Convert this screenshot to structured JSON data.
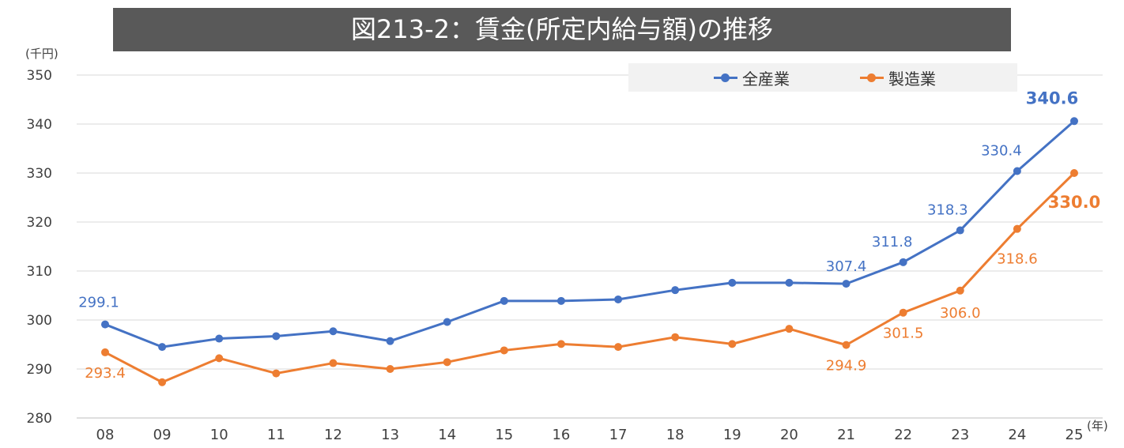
{
  "title": "図213-2：賃金(所定内給与額)の推移",
  "chart_data": {
    "type": "line",
    "categories": [
      "08",
      "09",
      "10",
      "11",
      "12",
      "13",
      "14",
      "15",
      "16",
      "17",
      "18",
      "19",
      "20",
      "21",
      "22",
      "23",
      "24",
      "25"
    ],
    "series": [
      {
        "name": "全産業",
        "color": "#4472c4",
        "values": [
          299.1,
          294.5,
          296.2,
          296.7,
          297.7,
          295.7,
          299.6,
          303.9,
          303.9,
          304.2,
          306.1,
          307.6,
          307.6,
          307.4,
          311.8,
          318.3,
          330.4,
          340.6
        ],
        "labels": [
          {
            "i": 0,
            "text": "299.1"
          },
          {
            "i": 13,
            "text": "307.4"
          },
          {
            "i": 14,
            "text": "311.8"
          },
          {
            "i": 15,
            "text": "318.3"
          },
          {
            "i": 16,
            "text": "330.4"
          },
          {
            "i": 17,
            "text": "340.6",
            "bold": true
          }
        ]
      },
      {
        "name": "製造業",
        "color": "#ed7d31",
        "values": [
          293.4,
          287.3,
          292.2,
          289.1,
          291.2,
          290.0,
          291.4,
          293.8,
          295.1,
          294.5,
          296.5,
          295.1,
          298.2,
          294.9,
          301.5,
          306.0,
          318.6,
          330.0
        ],
        "labels": [
          {
            "i": 0,
            "text": "293.4"
          },
          {
            "i": 13,
            "text": "294.9"
          },
          {
            "i": 14,
            "text": "301.5"
          },
          {
            "i": 15,
            "text": "306.0"
          },
          {
            "i": 16,
            "text": "318.6"
          },
          {
            "i": 17,
            "text": "330.0",
            "bold": true
          }
        ]
      }
    ],
    "ylim": [
      280,
      350
    ],
    "yticks": [
      280,
      290,
      300,
      310,
      320,
      330,
      340,
      350
    ],
    "ylabel": "(千円)",
    "xlabel": "(年)",
    "grid": true,
    "legend": "top-right"
  }
}
